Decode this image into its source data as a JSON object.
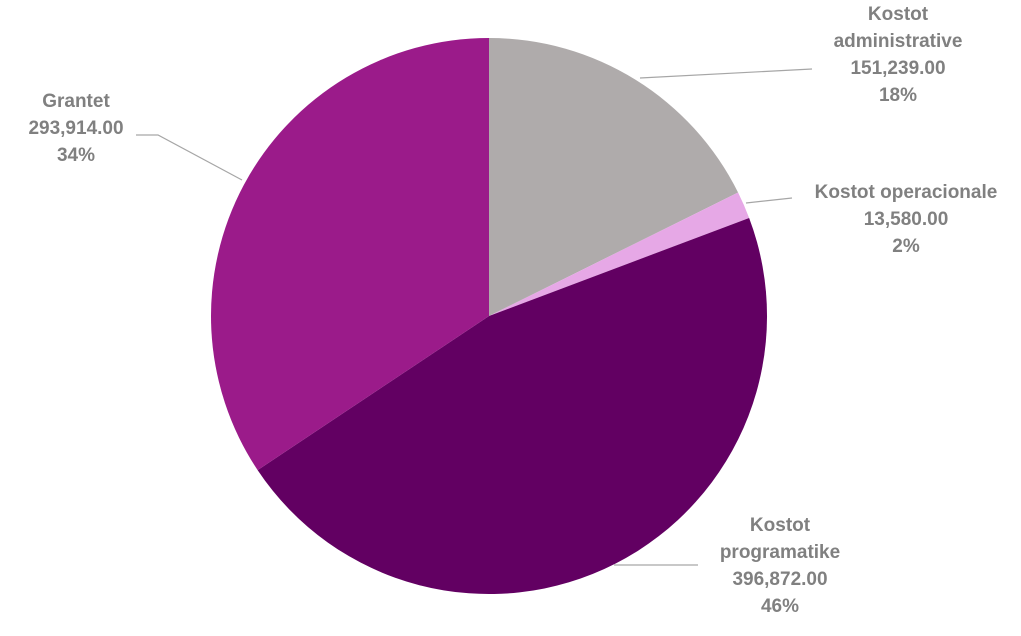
{
  "chart_data": {
    "type": "pie",
    "title": "",
    "slices": [
      {
        "name_lines": [
          "Kostot",
          "administrative"
        ],
        "value": 151239.0,
        "value_label": "151,239.00",
        "percent_label": "18%",
        "color": "#afabab"
      },
      {
        "name_lines": [
          "Kostot operacionale"
        ],
        "value": 13580.0,
        "value_label": "13,580.00",
        "percent_label": "2%",
        "color": "#e6a8e6"
      },
      {
        "name_lines": [
          "Kostot",
          "programatike"
        ],
        "value": 396872.0,
        "value_label": "396,872.00",
        "percent_label": "46%",
        "color": "#620062"
      },
      {
        "name_lines": [
          "Grantet"
        ],
        "value": 293914.0,
        "value_label": "293,914.00",
        "percent_label": "34%",
        "color": "#9b1b8a"
      }
    ],
    "start_angle_deg": 0,
    "direction": "clockwise",
    "legend": "none",
    "label_color": "#808080",
    "leader_color": "#a6a6a6"
  }
}
